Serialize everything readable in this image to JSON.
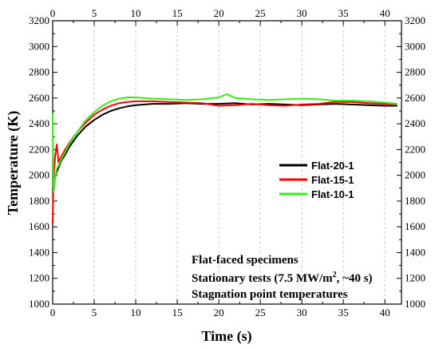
{
  "chart_data": {
    "type": "line",
    "xlabel": "Time (s)",
    "ylabel": "Temperature (K)",
    "xlim": [
      0,
      42
    ],
    "ylim": [
      1000,
      3200
    ],
    "x_ticks": [
      "0",
      "5",
      "10",
      "15",
      "20",
      "25",
      "30",
      "35",
      "40"
    ],
    "y_ticks": [
      "1000",
      "1200",
      "1400",
      "1600",
      "1800",
      "2000",
      "2200",
      "2400",
      "2600",
      "2800",
      "3000",
      "3200"
    ],
    "grid": "vertical dashed at major x ticks",
    "legend_position": "right, middle",
    "series": [
      {
        "name": "Flat-20-1",
        "color": "#000000",
        "x": [
          0.0,
          0.2,
          0.4,
          0.7,
          1.0,
          1.5,
          2.0,
          3.0,
          4.0,
          5.0,
          6.0,
          7.0,
          8.0,
          9.0,
          10.0,
          12.0,
          14.0,
          16.0,
          18.0,
          20.0,
          22.0,
          24.0,
          26.0,
          28.0,
          30.0,
          32.0,
          34.0,
          36.0,
          38.0,
          40.0,
          41.5
        ],
        "y": [
          1880,
          1950,
          2010,
          2060,
          2110,
          2160,
          2220,
          2310,
          2380,
          2430,
          2470,
          2500,
          2520,
          2535,
          2545,
          2555,
          2555,
          2560,
          2555,
          2555,
          2560,
          2550,
          2555,
          2550,
          2545,
          2550,
          2555,
          2550,
          2545,
          2540,
          2540
        ]
      },
      {
        "name": "Flat-15-1",
        "color": "#ff0000",
        "x": [
          0.0,
          0.1,
          0.3,
          0.5,
          0.7,
          1.0,
          1.5,
          2.0,
          3.0,
          4.0,
          5.0,
          6.0,
          7.0,
          8.0,
          9.0,
          10.0,
          12.0,
          14.0,
          16.0,
          18.0,
          20.0,
          22.0,
          24.0,
          26.0,
          28.0,
          30.0,
          32.0,
          34.0,
          36.0,
          38.0,
          40.0,
          41.5
        ],
        "y": [
          1620,
          1960,
          2150,
          2240,
          2100,
          2140,
          2200,
          2250,
          2340,
          2410,
          2470,
          2510,
          2540,
          2560,
          2570,
          2575,
          2575,
          2570,
          2565,
          2560,
          2540,
          2545,
          2555,
          2545,
          2540,
          2550,
          2555,
          2570,
          2570,
          2560,
          2555,
          2555
        ]
      },
      {
        "name": "Flat-10-1",
        "color": "#33ee11",
        "x": [
          0.0,
          0.1,
          0.3,
          0.5,
          0.8,
          1.0,
          1.5,
          2.0,
          3.0,
          4.0,
          5.0,
          6.0,
          7.0,
          8.0,
          9.0,
          10.0,
          12.0,
          14.0,
          16.0,
          18.0,
          20.0,
          21.0,
          22.0,
          24.0,
          26.0,
          28.0,
          30.0,
          32.0,
          34.0,
          36.0,
          38.0,
          40.0,
          41.5
        ],
        "y": [
          2480,
          1870,
          1980,
          2050,
          2090,
          2120,
          2180,
          2240,
          2340,
          2430,
          2490,
          2540,
          2575,
          2595,
          2605,
          2605,
          2595,
          2590,
          2585,
          2590,
          2605,
          2630,
          2600,
          2590,
          2585,
          2590,
          2595,
          2590,
          2580,
          2580,
          2575,
          2565,
          2555
        ]
      }
    ],
    "annotations": [
      "Flat-faced specimens",
      "Stationary tests (7.5 MW/m",
      "2",
      ", ~40 s)",
      "Stagnation point temperatures"
    ]
  }
}
